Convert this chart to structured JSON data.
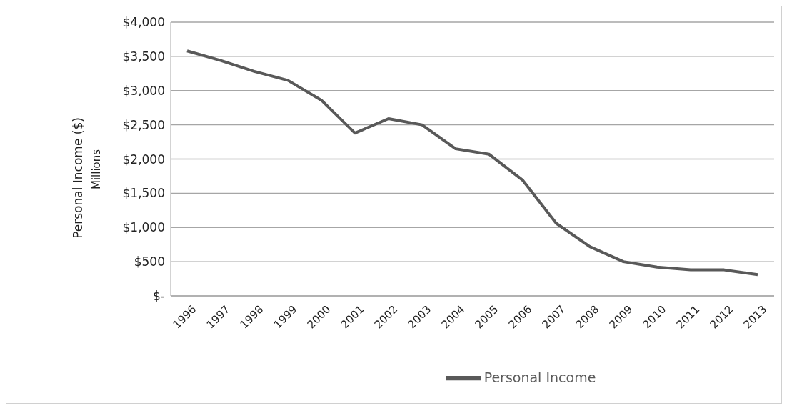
{
  "chart_data": {
    "type": "line",
    "ylabel": "Personal Income  ($)",
    "annotations": [
      "Millions"
    ],
    "categories": [
      "1996",
      "1997",
      "1998",
      "1999",
      "2000",
      "2001",
      "2002",
      "2003",
      "2004",
      "2005",
      "2006",
      "2007",
      "2008",
      "2009",
      "2010",
      "2011",
      "2012",
      "2013"
    ],
    "series": [
      {
        "name": "Personal Income",
        "color": "#595959",
        "values": [
          3580,
          3440,
          3280,
          3150,
          2860,
          2380,
          2590,
          2500,
          2150,
          2070,
          1690,
          1060,
          720,
          500,
          420,
          380,
          380,
          310
        ]
      }
    ],
    "ylim": [
      0,
      4000
    ],
    "yticks": [
      {
        "value": 0,
        "label": "$-"
      },
      {
        "value": 500,
        "label": "$500"
      },
      {
        "value": 1000,
        "label": "$1,000"
      },
      {
        "value": 1500,
        "label": "$1,500"
      },
      {
        "value": 2000,
        "label": "$2,000"
      },
      {
        "value": 2500,
        "label": "$2,500"
      },
      {
        "value": 3000,
        "label": "$3,000"
      },
      {
        "value": 3500,
        "label": "$3,500"
      },
      {
        "value": 4000,
        "label": "$4,000"
      }
    ],
    "grid": "y",
    "legend": "bottom",
    "marker": "none",
    "line_style": "solid"
  }
}
